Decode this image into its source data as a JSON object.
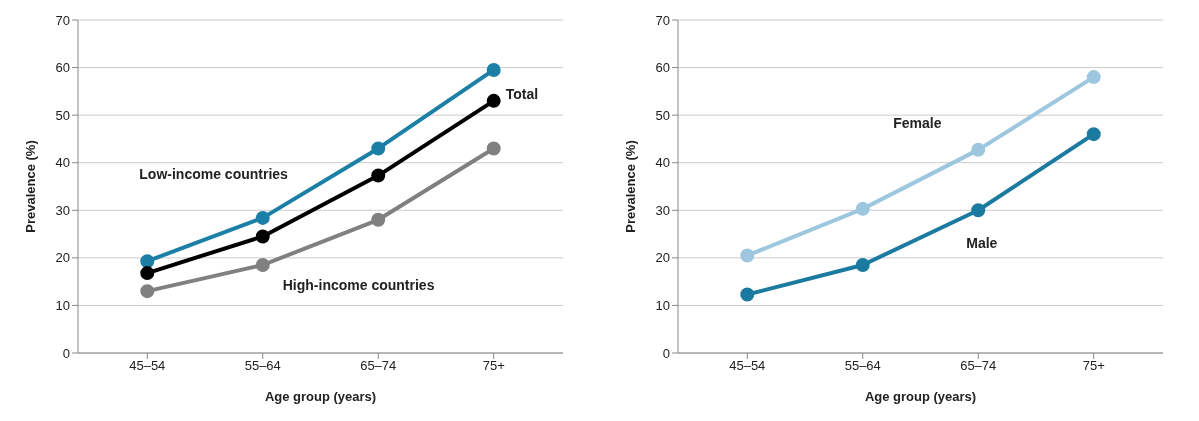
{
  "chart_data": [
    {
      "type": "line",
      "xlabel": "Age group (years)",
      "ylabel": "Prevalence (%)",
      "categories": [
        "45–54",
        "55–64",
        "65–74",
        "75+"
      ],
      "ylim": [
        0,
        70
      ],
      "yticks": [
        0,
        10,
        20,
        30,
        40,
        50,
        60,
        70
      ],
      "grid": "y",
      "legend": false,
      "marker": "circle",
      "line_style": "solid",
      "series": [
        {
          "name": "Low-income countries",
          "color": "#1b7fa6",
          "values": [
            19.3,
            28.4,
            43,
            59.5
          ]
        },
        {
          "name": "Total",
          "color": "#000000",
          "values": [
            16.8,
            24.5,
            37.3,
            53
          ]
        },
        {
          "name": "High-income countries",
          "color": "#808080",
          "values": [
            13,
            18.5,
            28,
            43
          ]
        }
      ]
    },
    {
      "type": "line",
      "xlabel": "Age group (years)",
      "ylabel": "Prevalence (%)",
      "categories": [
        "45–54",
        "55–64",
        "65–74",
        "75+"
      ],
      "ylim": [
        0,
        70
      ],
      "yticks": [
        0,
        10,
        20,
        30,
        40,
        50,
        60,
        70
      ],
      "grid": "y",
      "legend": false,
      "marker": "circle",
      "line_style": "solid",
      "series": [
        {
          "name": "Female",
          "color": "#9dc7df",
          "values": [
            20.5,
            30.3,
            42.7,
            58
          ]
        },
        {
          "name": "Male",
          "color": "#1b7aa0",
          "values": [
            12.3,
            18.5,
            30,
            46
          ]
        }
      ]
    }
  ]
}
